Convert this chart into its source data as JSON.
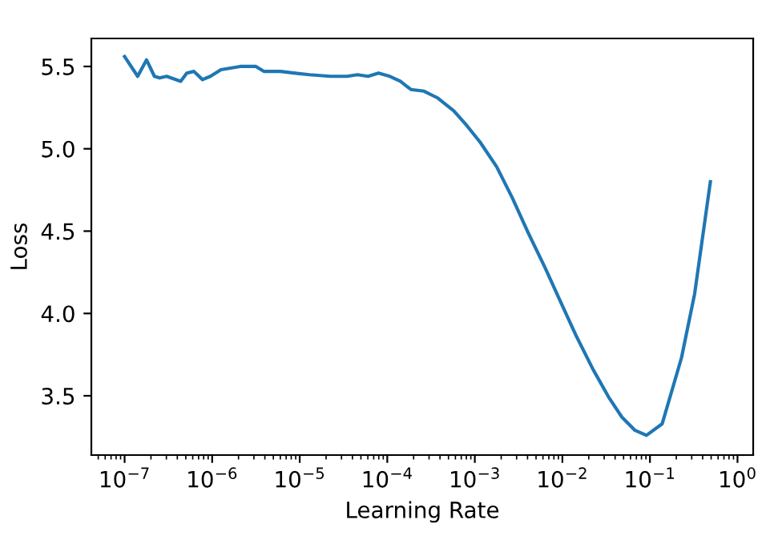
{
  "chart_data": {
    "type": "line",
    "xlabel": "Learning Rate",
    "ylabel": "Loss",
    "log": "x",
    "grid": false,
    "legend": false,
    "xlim": [
      4.17e-08,
      1.51
    ],
    "ylim": [
      3.14,
      5.67
    ],
    "xticks": [
      {
        "value": 1e-07,
        "label": "10$^{−7}$"
      },
      {
        "value": 1e-06,
        "label": "10$^{−6}$"
      },
      {
        "value": 1e-05,
        "label": "10$^{−5}$"
      },
      {
        "value": 0.0001,
        "label": "10$^{−4}$"
      },
      {
        "value": 0.001,
        "label": "10$^{−3}$"
      },
      {
        "value": 0.01,
        "label": "10$^{−2}$"
      },
      {
        "value": 0.1,
        "label": "10$^{−1}$"
      },
      {
        "value": 1,
        "label": "10$^{0}$"
      }
    ],
    "yticks": [
      3.5,
      {
        "value": 4,
        "label": "4.0"
      },
      4.5,
      {
        "value": 5,
        "label": "5.0"
      },
      5.5
    ],
    "series": [
      {
        "color": "#1f77b4",
        "x": [
          1e-07,
          1.41e-07,
          1.78e-07,
          2.19e-07,
          2.51e-07,
          3.02e-07,
          4.37e-07,
          5.13e-07,
          6.17e-07,
          7.76e-07,
          9.55e-07,
          1.26e-06,
          2.09e-06,
          3.16e-06,
          3.89e-06,
          6.03e-06,
          8.51e-06,
          1.29e-05,
          2.24e-05,
          3.47e-05,
          4.57e-05,
          6.03e-05,
          7.94e-05,
          0.000107,
          0.000141,
          0.000186,
          0.000263,
          0.000372,
          0.000575,
          0.000813,
          0.00115,
          0.00178,
          0.00269,
          0.00407,
          0.00631,
          0.00955,
          0.0145,
          0.0224,
          0.0339,
          0.0479,
          0.0676,
          0.0912,
          0.138,
          0.229,
          0.324,
          0.49
        ],
        "values": [
          5.56,
          5.44,
          5.54,
          5.44,
          5.43,
          5.44,
          5.41,
          5.46,
          5.47,
          5.42,
          5.44,
          5.48,
          5.5,
          5.5,
          5.47,
          5.47,
          5.46,
          5.45,
          5.44,
          5.44,
          5.45,
          5.44,
          5.46,
          5.44,
          5.41,
          5.36,
          5.35,
          5.31,
          5.23,
          5.14,
          5.04,
          4.89,
          4.7,
          4.49,
          4.28,
          4.07,
          3.86,
          3.66,
          3.49,
          3.37,
          3.29,
          3.26,
          3.33,
          3.73,
          4.12,
          4.8
        ]
      }
    ]
  }
}
